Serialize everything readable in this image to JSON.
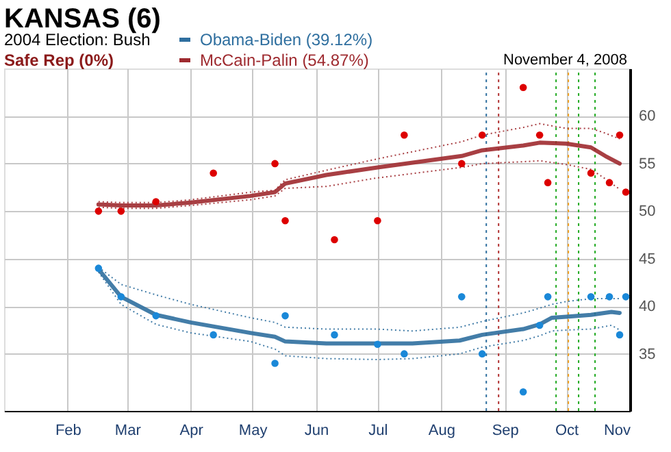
{
  "chart_data": {
    "type": "line",
    "title": "KANSAS (6)",
    "subtitle": "2004 Election: Bush",
    "annotations": [
      "Safe Rep (0%)",
      "November 4, 2008"
    ],
    "xlim": [
      "2008-01-01",
      "2008-11-01"
    ],
    "xticks": [
      {
        "value": "2008-02-01",
        "label": "Feb"
      },
      {
        "value": "2008-03-01",
        "label": "Mar"
      },
      {
        "value": "2008-04-01",
        "label": "Apr"
      },
      {
        "value": "2008-05-01",
        "label": "May"
      },
      {
        "value": "2008-06-01",
        "label": "Jun"
      },
      {
        "value": "2008-07-01",
        "label": "Jul"
      },
      {
        "value": "2008-08-01",
        "label": "Aug"
      },
      {
        "value": "2008-09-01",
        "label": "Sep"
      },
      {
        "value": "2008-10-01",
        "label": "Oct"
      },
      {
        "value": "2008-11-01",
        "label": "Nov"
      }
    ],
    "ylim": [
      29,
      65
    ],
    "yticks": [
      35,
      40,
      45,
      50,
      55,
      60
    ],
    "grid": true,
    "legend": "top",
    "series": [
      {
        "name": "Obama-Biden (39.12%)",
        "color": "#2f6f9f",
        "line_style": "solid",
        "x": [
          "2008-02-16",
          "2008-02-27",
          "2008-03-15",
          "2008-04-01",
          "2008-04-30",
          "2008-05-12",
          "2008-05-17",
          "2008-06-06",
          "2008-07-01",
          "2008-07-18",
          "2008-08-10",
          "2008-08-21",
          "2008-09-10",
          "2008-09-18",
          "2008-09-24",
          "2008-10-01",
          "2008-10-13",
          "2008-10-23",
          "2008-10-27"
        ],
        "values": [
          43.9,
          41.0,
          39.1,
          38.3,
          37.2,
          36.8,
          36.3,
          36.1,
          36.1,
          36.1,
          36.4,
          37.0,
          37.6,
          38.1,
          38.8,
          38.9,
          39.1,
          39.4,
          39.3
        ]
      },
      {
        "color": "#2f6f9f",
        "line_style": "dotted",
        "x": [
          "2008-02-16",
          "2008-02-27",
          "2008-03-15",
          "2008-04-01",
          "2008-04-30",
          "2008-05-12",
          "2008-05-17",
          "2008-06-06",
          "2008-07-01",
          "2008-07-18",
          "2008-08-10",
          "2008-08-21",
          "2008-09-10",
          "2008-09-18",
          "2008-09-24",
          "2008-10-01",
          "2008-10-13",
          "2008-10-23",
          "2008-10-27"
        ],
        "values": [
          44.1,
          42.3,
          41.2,
          40.2,
          38.8,
          38.3,
          37.8,
          37.6,
          37.6,
          37.4,
          37.8,
          38.4,
          39.3,
          39.8,
          40.2,
          40.5,
          40.8,
          40.8,
          40.8
        ]
      },
      {
        "color": "#2f6f9f",
        "line_style": "dotted",
        "x": [
          "2008-02-16",
          "2008-02-27",
          "2008-03-15",
          "2008-04-01",
          "2008-04-30",
          "2008-05-12",
          "2008-05-17",
          "2008-06-06",
          "2008-07-01",
          "2008-07-18",
          "2008-08-10",
          "2008-08-21",
          "2008-09-10",
          "2008-09-18",
          "2008-09-24",
          "2008-10-01",
          "2008-10-13",
          "2008-10-23",
          "2008-10-27"
        ],
        "values": [
          43.6,
          40.2,
          38.1,
          37.2,
          36.3,
          35.5,
          34.8,
          34.5,
          34.4,
          34.5,
          35.0,
          35.7,
          36.4,
          36.9,
          37.4,
          37.5,
          37.6,
          38.0,
          37.5
        ]
      },
      {
        "name": "McCain-Palin (54.87%)",
        "color": "#9e2a2f",
        "line_style": "solid",
        "x": [
          "2008-02-16",
          "2008-02-27",
          "2008-03-15",
          "2008-04-01",
          "2008-04-30",
          "2008-05-12",
          "2008-05-17",
          "2008-06-06",
          "2008-07-01",
          "2008-08-11",
          "2008-08-21",
          "2008-09-10",
          "2008-09-18",
          "2008-10-01",
          "2008-10-13",
          "2008-10-20",
          "2008-10-27"
        ],
        "values": [
          50.7,
          50.6,
          50.6,
          50.9,
          51.6,
          52.0,
          52.9,
          53.8,
          54.6,
          55.8,
          56.4,
          56.9,
          57.2,
          57.1,
          56.7,
          55.8,
          55.0
        ]
      },
      {
        "color": "#9e2a2f",
        "line_style": "dotted",
        "x": [
          "2008-02-16",
          "2008-02-27",
          "2008-03-15",
          "2008-04-01",
          "2008-04-30",
          "2008-05-12",
          "2008-05-17",
          "2008-06-06",
          "2008-07-01",
          "2008-08-11",
          "2008-08-21",
          "2008-09-10",
          "2008-09-18",
          "2008-10-01",
          "2008-10-13",
          "2008-10-20",
          "2008-10-27"
        ],
        "values": [
          51.0,
          50.9,
          50.9,
          51.2,
          52.0,
          52.2,
          53.3,
          54.3,
          55.5,
          57.3,
          58.0,
          58.8,
          59.2,
          58.7,
          58.7,
          58.2,
          57.6
        ]
      },
      {
        "color": "#9e2a2f",
        "line_style": "dotted",
        "x": [
          "2008-02-16",
          "2008-02-27",
          "2008-03-15",
          "2008-04-01",
          "2008-04-30",
          "2008-05-12",
          "2008-05-17",
          "2008-06-06",
          "2008-07-01",
          "2008-08-11",
          "2008-08-21",
          "2008-09-10",
          "2008-09-18",
          "2008-10-01",
          "2008-10-13",
          "2008-10-20",
          "2008-10-27"
        ],
        "values": [
          50.4,
          50.3,
          50.3,
          50.6,
          51.2,
          51.6,
          52.4,
          52.6,
          53.5,
          54.6,
          55.0,
          55.2,
          55.3,
          54.9,
          54.4,
          53.4,
          52.3
        ]
      },
      {
        "type": "scatter",
        "color": "#1a88d8",
        "marker": "circle",
        "x": [
          "2008-02-16",
          "2008-02-27",
          "2008-03-15",
          "2008-04-12",
          "2008-05-12",
          "2008-05-17",
          "2008-06-10",
          "2008-07-01",
          "2008-07-14",
          "2008-08-11",
          "2008-08-21",
          "2008-09-10",
          "2008-09-18",
          "2008-09-22",
          "2008-10-13",
          "2008-10-22",
          "2008-10-27",
          "2008-10-30"
        ],
        "values": [
          44,
          41,
          39,
          37,
          34,
          39,
          37,
          36,
          35,
          41,
          35,
          31,
          38,
          41,
          41,
          41,
          37,
          41
        ]
      },
      {
        "type": "scatter",
        "color": "#dd0000",
        "marker": "circle",
        "x": [
          "2008-02-16",
          "2008-02-27",
          "2008-03-15",
          "2008-04-12",
          "2008-05-12",
          "2008-05-17",
          "2008-06-10",
          "2008-07-01",
          "2008-07-14",
          "2008-08-11",
          "2008-08-21",
          "2008-09-10",
          "2008-09-18",
          "2008-09-22",
          "2008-10-13",
          "2008-10-22",
          "2008-10-27",
          "2008-10-30"
        ],
        "values": [
          50,
          50,
          51,
          54,
          55,
          49,
          47,
          49,
          58,
          55,
          58,
          63,
          58,
          53,
          54,
          53,
          58,
          52
        ]
      }
    ],
    "ref_lines": [
      {
        "axis": "x",
        "value": "2008-08-23",
        "color": "#2f6f9f",
        "line_style": "dotted"
      },
      {
        "axis": "x",
        "value": "2008-08-29",
        "color": "#b03030",
        "line_style": "dotted"
      },
      {
        "axis": "x",
        "value": "2008-09-26",
        "color": "#22aa22",
        "line_style": "dotted"
      },
      {
        "axis": "x",
        "value": "2008-10-02",
        "color": "#f0a020",
        "line_style": "dotted"
      },
      {
        "axis": "x",
        "value": "2008-10-07",
        "color": "#22aa22",
        "line_style": "dotted"
      },
      {
        "axis": "x",
        "value": "2008-10-15",
        "color": "#22aa22",
        "line_style": "dotted"
      }
    ]
  }
}
